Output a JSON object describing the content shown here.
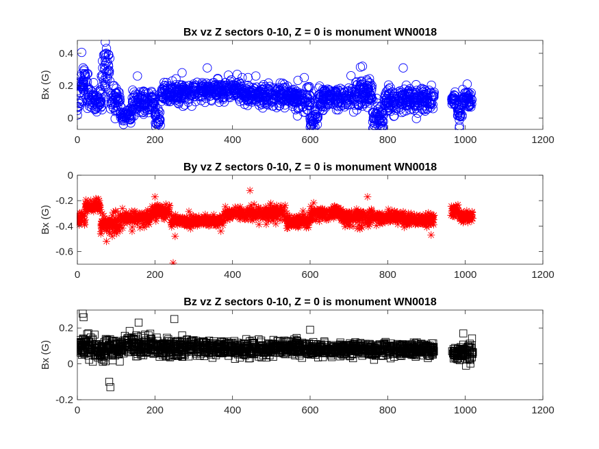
{
  "figure": {
    "background": "#ffffff"
  },
  "chart_data": [
    {
      "type": "scatter",
      "title": "Bx vz Z sectors 0-10, Z = 0 is monument WN0018",
      "xlabel": "",
      "ylabel": "Bx (G)",
      "xlim": [
        0,
        1200
      ],
      "ylim": [
        -0.07,
        0.48
      ],
      "xticks": [
        0,
        200,
        400,
        600,
        800,
        1000,
        1200
      ],
      "yticks": [
        0,
        0.2,
        0.4
      ],
      "ytick_labels": [
        "0",
        "0.2",
        "0.4"
      ],
      "marker": "circle",
      "color": "#0000ff",
      "segments": [
        [
          0,
          1.0,
          0.05,
          0.06
        ],
        [
          1.0,
          10.0,
          0.16,
          0.09
        ],
        [
          10.0,
          26.0,
          0.23,
          0.09
        ],
        [
          26.0,
          45.0,
          0.14,
          0.08
        ],
        [
          45.0,
          64.0,
          0.09,
          0.07
        ],
        [
          64.0,
          85.0,
          0.3,
          0.12
        ],
        [
          85.0,
          110.0,
          0.11,
          0.09
        ],
        [
          110.0,
          140.0,
          0.02,
          0.05
        ],
        [
          140.0,
          200.0,
          0.1,
          0.07
        ],
        [
          200.0,
          215.0,
          0.0,
          0.06
        ],
        [
          215.0,
          260.0,
          0.15,
          0.06
        ],
        [
          260.0,
          300.0,
          0.16,
          0.07
        ],
        [
          300.0,
          380.0,
          0.17,
          0.06
        ],
        [
          380.0,
          420.0,
          0.18,
          0.05
        ],
        [
          420.0,
          480.0,
          0.14,
          0.05
        ],
        [
          480.0,
          560.0,
          0.14,
          0.06
        ],
        [
          560.0,
          600.0,
          0.12,
          0.08
        ],
        [
          600.0,
          620.0,
          0.0,
          0.06
        ],
        [
          620.0,
          700.0,
          0.13,
          0.06
        ],
        [
          700.0,
          760.0,
          0.15,
          0.08
        ],
        [
          760.0,
          790.0,
          0.0,
          0.07
        ],
        [
          790.0,
          850.0,
          0.11,
          0.08
        ],
        [
          850.0,
          920.0,
          0.12,
          0.07
        ]
      ],
      "segments2": [
        [
          965.0,
          980.0,
          0.11,
          0.04
        ],
        [
          980.0,
          992.0,
          0.01,
          0.05
        ],
        [
          992.0,
          1020.0,
          0.12,
          0.05
        ]
      ],
      "outliers": [
        [
          15.0,
          0.31
        ],
        [
          18.0,
          0.3
        ],
        [
          62.0,
          0.26
        ],
        [
          72.0,
          0.47
        ],
        [
          75.0,
          0.43
        ],
        [
          95.0,
          0.2
        ],
        [
          155.0,
          0.26
        ],
        [
          230.0,
          0.22
        ],
        [
          245.0,
          0.23
        ],
        [
          270.0,
          0.28
        ],
        [
          335.0,
          0.31
        ],
        [
          412.0,
          0.27
        ],
        [
          425.0,
          0.25
        ],
        [
          440.0,
          0.25
        ],
        [
          460.0,
          0.26
        ],
        [
          585.0,
          0.25
        ],
        [
          603.0,
          -0.05
        ],
        [
          735.0,
          0.32
        ],
        [
          780.0,
          -0.06
        ],
        [
          787.0,
          -0.05
        ],
        [
          840.0,
          0.31
        ],
        [
          985.0,
          -0.05
        ],
        [
          1005.0,
          0.21
        ]
      ],
      "count": 1700,
      "seed": 11
    },
    {
      "type": "scatter",
      "title": "By vz Z sectors 0-10, Z = 0 is monument WN0018",
      "xlabel": "",
      "ylabel": "Bx (G)",
      "xlim": [
        0,
        1200
      ],
      "ylim": [
        -0.7,
        0
      ],
      "xticks": [
        0,
        200,
        400,
        600,
        800,
        1000,
        1200
      ],
      "yticks": [
        -0.6,
        -0.4,
        -0.2,
        0
      ],
      "ytick_labels": [
        "-0.6",
        "-0.4",
        "-0.2",
        "0"
      ],
      "marker": "asterisk",
      "color": "#ff0000",
      "segments": [
        [
          0,
          20.0,
          -0.33,
          0.05
        ],
        [
          20.0,
          60.0,
          -0.24,
          0.04
        ],
        [
          60.0,
          110.0,
          -0.38,
          0.07
        ],
        [
          110.0,
          190.0,
          -0.34,
          0.05
        ],
        [
          190.0,
          240.0,
          -0.28,
          0.05
        ],
        [
          240.0,
          300.0,
          -0.36,
          0.04
        ],
        [
          300.0,
          380.0,
          -0.36,
          0.04
        ],
        [
          380.0,
          460.0,
          -0.3,
          0.05
        ],
        [
          460.0,
          540.0,
          -0.3,
          0.05
        ],
        [
          540.0,
          600.0,
          -0.37,
          0.05
        ],
        [
          600.0,
          680.0,
          -0.3,
          0.05
        ],
        [
          680.0,
          760.0,
          -0.33,
          0.06
        ],
        [
          760.0,
          840.0,
          -0.33,
          0.04
        ],
        [
          840.0,
          920.0,
          -0.35,
          0.05
        ]
      ],
      "segments2": [
        [
          963.0,
          985.0,
          -0.28,
          0.04
        ],
        [
          985.0,
          1020.0,
          -0.33,
          0.04
        ]
      ],
      "outliers": [
        [
          247.0,
          -0.69
        ],
        [
          252.0,
          -0.48
        ],
        [
          445.0,
          -0.12
        ],
        [
          200.0,
          -0.17
        ],
        [
          90.0,
          -0.48
        ],
        [
          75.0,
          -0.52
        ],
        [
          370.0,
          -0.44
        ],
        [
          912.0,
          -0.47
        ],
        [
          748.0,
          -0.17
        ]
      ],
      "count": 1700,
      "seed": 23
    },
    {
      "type": "scatter",
      "title": "Bz vz Z sectors 0-10, Z = 0 is monument WN0018",
      "xlabel": "",
      "ylabel": "Bx (G)",
      "xlim": [
        0,
        1200
      ],
      "ylim": [
        -0.2,
        0.3
      ],
      "xticks": [
        0,
        200,
        400,
        600,
        800,
        1000,
        1200
      ],
      "yticks": [
        -0.2,
        0,
        0.2
      ],
      "ytick_labels": [
        "-0.2",
        "0",
        "0.2"
      ],
      "marker": "square",
      "color": "#000000",
      "segments": [
        [
          0,
          40.0,
          0.09,
          0.06
        ],
        [
          40.0,
          120.0,
          0.08,
          0.05
        ],
        [
          120.0,
          200.0,
          0.1,
          0.05
        ],
        [
          200.0,
          300.0,
          0.09,
          0.045
        ],
        [
          300.0,
          400.0,
          0.09,
          0.04
        ],
        [
          400.0,
          500.0,
          0.08,
          0.04
        ],
        [
          500.0,
          600.0,
          0.09,
          0.035
        ],
        [
          600.0,
          700.0,
          0.08,
          0.03
        ],
        [
          700.0,
          800.0,
          0.08,
          0.035
        ],
        [
          800.0,
          920.0,
          0.08,
          0.035
        ]
      ],
      "segments2": [
        [
          965.0,
          985.0,
          0.06,
          0.03
        ],
        [
          985.0,
          1020.0,
          0.07,
          0.05
        ]
      ],
      "outliers": [
        [
          14.0,
          0.28
        ],
        [
          16.0,
          0.26
        ],
        [
          85.0,
          -0.13
        ],
        [
          82.0,
          -0.1
        ],
        [
          158.0,
          0.23
        ],
        [
          250.0,
          0.25
        ],
        [
          600.0,
          0.19
        ],
        [
          995.0,
          0.17
        ],
        [
          1002.0,
          -0.01
        ]
      ],
      "count": 1700,
      "seed": 37
    }
  ]
}
